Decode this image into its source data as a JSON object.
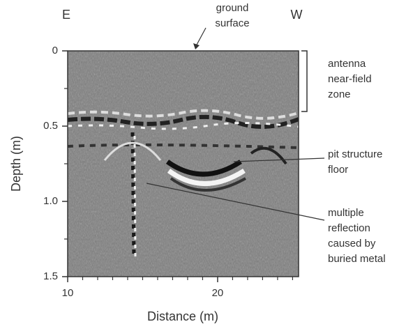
{
  "chart_data": {
    "type": "radargram",
    "xlabel": "Distance (m)",
    "ylabel": "Depth (m)",
    "xlim": [
      10,
      25.4
    ],
    "xticks": [
      10,
      20
    ],
    "xminorticks": [
      11,
      12,
      13,
      14,
      15,
      16,
      17,
      18,
      19,
      21,
      22,
      23,
      24,
      25
    ],
    "ylim": [
      0,
      1.5
    ],
    "yticks": [
      0,
      0.5,
      {
        "value": 1,
        "label": "1.0"
      },
      1.5
    ],
    "yminorticks": [
      0.25,
      0.75,
      1.25
    ],
    "direction_labels": [
      "E",
      "W"
    ],
    "annotations": [
      {
        "lines": [
          "ground",
          "surface"
        ]
      },
      {
        "lines": [
          "antenna",
          "near-field",
          "zone"
        ]
      },
      {
        "lines": [
          "pit structure",
          "floor"
        ]
      },
      {
        "lines": [
          "multiple",
          "reflection",
          "caused by",
          "buried metal"
        ]
      }
    ]
  }
}
